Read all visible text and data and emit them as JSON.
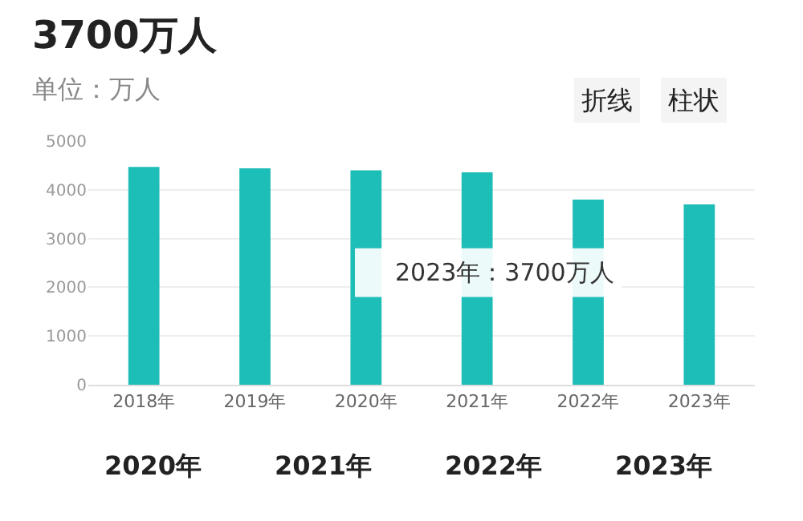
{
  "chart_data": {
    "type": "bar",
    "title": "3700万人",
    "subtitle": "单位：万人",
    "categories": [
      "2018年",
      "2019年",
      "2020年",
      "2021年",
      "2022年",
      "2023年"
    ],
    "values": [
      4470,
      4440,
      4400,
      4360,
      3800,
      3700
    ],
    "color": "#1dbdb8",
    "ylim": [
      0,
      5000
    ],
    "yticks": [
      0,
      1000,
      2000,
      3000,
      4000,
      5000
    ],
    "grid": "y",
    "annotations": [
      "2023年：3700万人",
      "折线",
      "柱状",
      "2020年",
      "2021年",
      "2022年",
      "2023年"
    ]
  }
}
